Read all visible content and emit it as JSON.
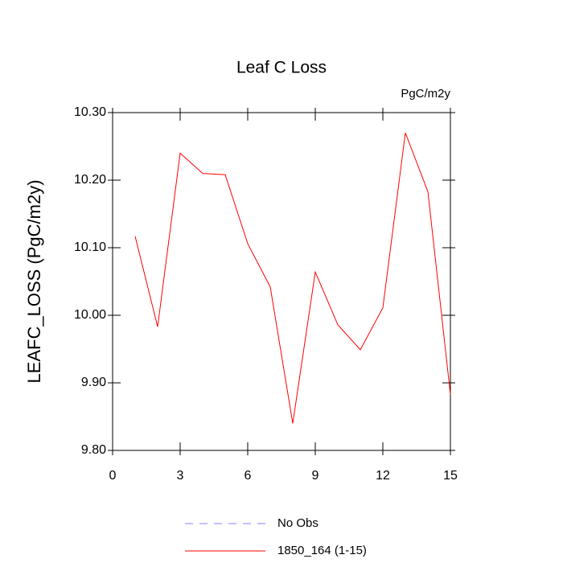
{
  "chart_data": {
    "type": "line",
    "title": "Leaf C Loss",
    "units": "PgC/m2y",
    "y_label": "LEAFC_LOSS  (PgC/m2y)",
    "x": [
      1,
      2,
      3,
      4,
      5,
      6,
      7,
      8,
      9,
      10,
      11,
      12,
      13,
      14,
      15
    ],
    "series": [
      {
        "name": "No Obs",
        "color": "#8080ff",
        "dash": "dashed",
        "values": [
          null,
          null,
          null,
          null,
          null,
          null,
          null,
          null,
          null,
          null,
          null,
          null,
          null,
          null,
          null
        ]
      },
      {
        "name": "1850_164 (1-15)",
        "color": "#ff0000",
        "dash": "solid",
        "values": [
          10.117,
          9.983,
          10.24,
          10.21,
          10.208,
          10.106,
          10.042,
          9.84,
          10.064,
          9.986,
          9.949,
          10.011,
          10.27,
          10.183,
          9.883
        ]
      }
    ],
    "xlim": [
      0,
      15
    ],
    "xticks": [
      0,
      3,
      6,
      9,
      12,
      15
    ],
    "ylim": [
      9.8,
      10.3
    ],
    "yticks": [
      {
        "value": 9.8,
        "label": "9.80"
      },
      {
        "value": 9.9,
        "label": "9.90"
      },
      {
        "value": 10.0,
        "label": "10.00"
      },
      {
        "value": 10.1,
        "label": "10.10"
      },
      {
        "value": 10.2,
        "label": "10.20"
      },
      {
        "value": 10.3,
        "label": "10.30"
      }
    ],
    "grid": false
  }
}
